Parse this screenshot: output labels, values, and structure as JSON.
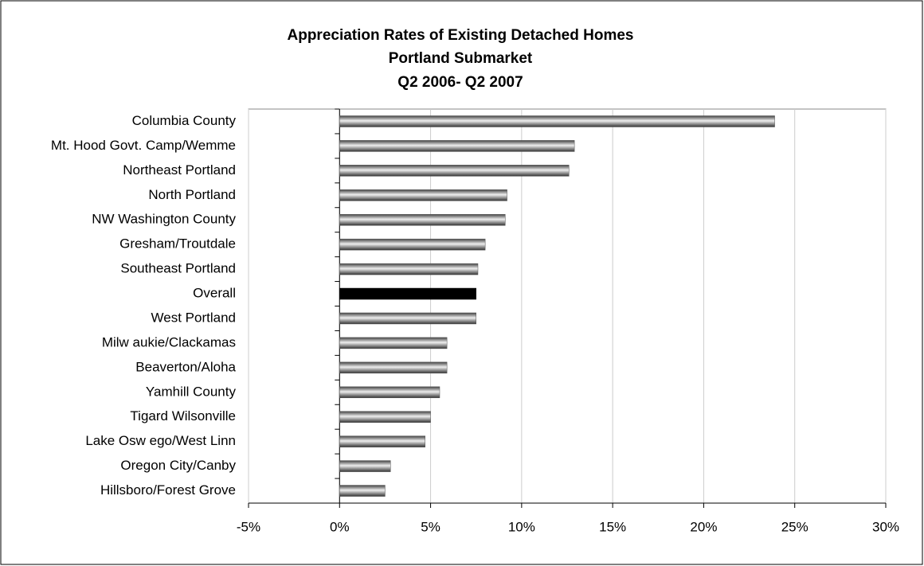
{
  "chart_data": {
    "type": "barh",
    "title": [
      "Appreciation Rates of Existing Detached Homes",
      "Portland Submarket",
      "Q2 2006- Q2 2007"
    ],
    "categories": [
      "Columbia County",
      "Mt. Hood Govt. Camp/Wemme",
      "Northeast Portland",
      "North Portland",
      "NW Washington County",
      "Gresham/Troutdale",
      "Southeast Portland",
      "Overall",
      "West Portland",
      "Milw aukie/Clackamas",
      "Beaverton/Aloha",
      "Yamhill County",
      "Tigard Wilsonville",
      "Lake Osw ego/West Linn",
      "Oregon City/Canby",
      "Hillsboro/Forest Grove"
    ],
    "values": [
      23.9,
      12.9,
      12.6,
      9.2,
      9.1,
      8.0,
      7.6,
      7.5,
      7.5,
      5.9,
      5.9,
      5.5,
      5.0,
      4.7,
      2.8,
      2.5
    ],
    "colors": [
      "#808080",
      "#808080",
      "#808080",
      "#808080",
      "#808080",
      "#808080",
      "#808080",
      "#000000",
      "#808080",
      "#808080",
      "#808080",
      "#808080",
      "#808080",
      "#808080",
      "#808080",
      "#808080"
    ],
    "xlim": [
      -5,
      30
    ],
    "xticks": [
      {
        "value": -5,
        "label": "-5%"
      },
      {
        "value": 0,
        "label": "0%"
      },
      {
        "value": 5,
        "label": "5%"
      },
      {
        "value": 10,
        "label": "10%"
      },
      {
        "value": 15,
        "label": "15%"
      },
      {
        "value": 20,
        "label": "20%"
      },
      {
        "value": 25,
        "label": "25%"
      },
      {
        "value": 30,
        "label": "30%"
      }
    ],
    "grid": true
  }
}
